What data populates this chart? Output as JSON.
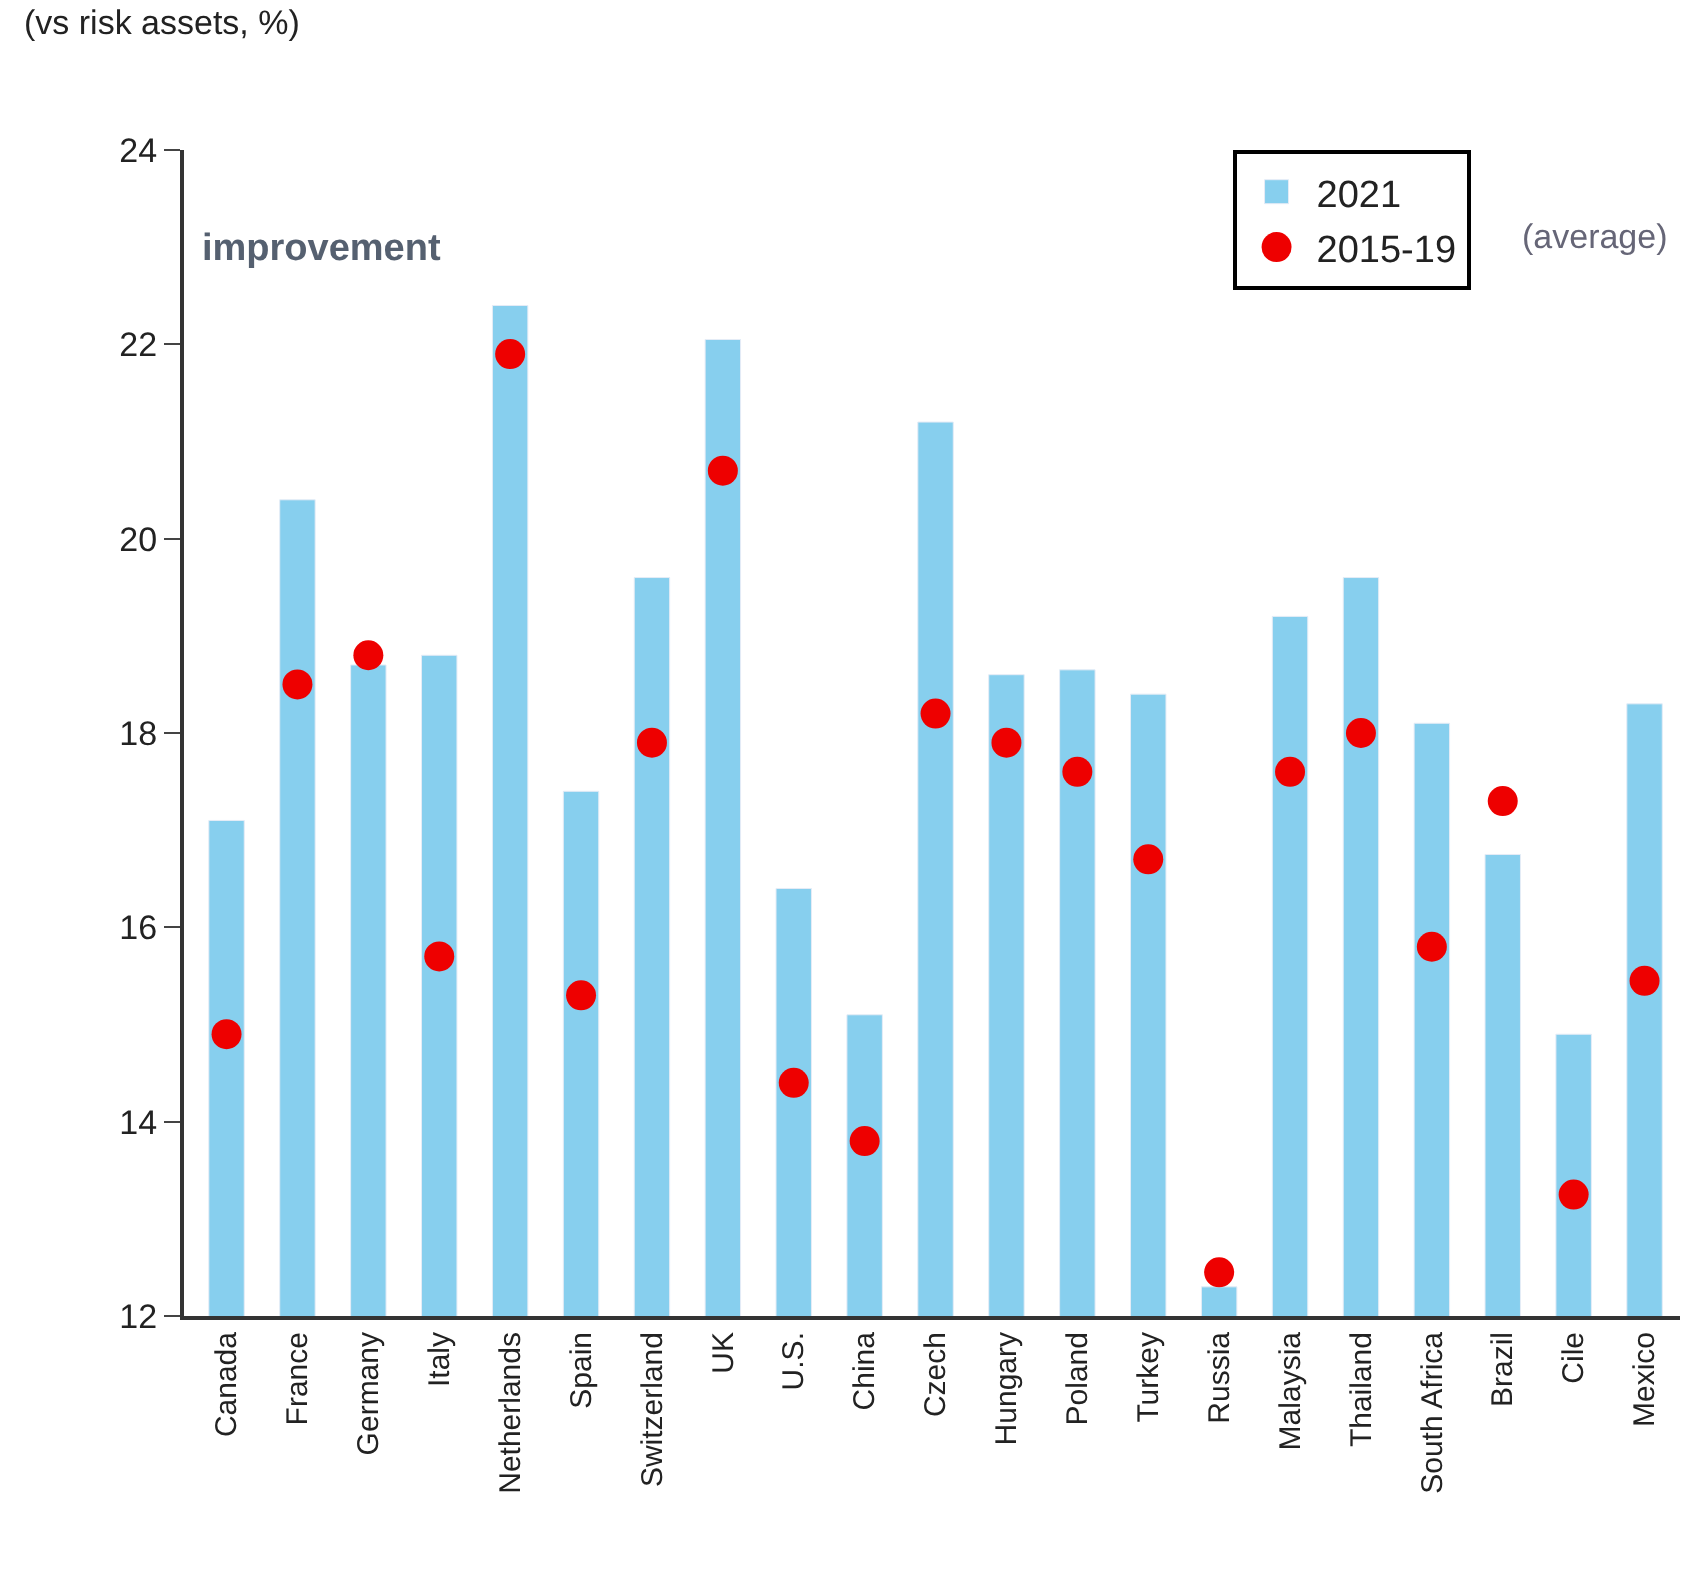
{
  "chart_data": {
    "type": "bar",
    "ylabel": "(vs risk assets, %)",
    "categories": [
      "Canada",
      "France",
      "Germany",
      "Italy",
      "Netherlands",
      "Spain",
      "Switzerland",
      "UK",
      "U.S.",
      "China",
      "Czech",
      "Hungary",
      "Poland",
      "Turkey",
      "Russia",
      "Malaysia",
      "Thailand",
      "South Africa",
      "Brazil",
      "Cile",
      "Mexico"
    ],
    "series": [
      {
        "name": "2021",
        "color": "#87cfee",
        "values": [
          17.1,
          20.4,
          18.7,
          18.8,
          22.4,
          17.4,
          19.6,
          22.05,
          16.4,
          15.1,
          21.2,
          18.6,
          18.65,
          18.4,
          12.3,
          19.2,
          19.6,
          18.1,
          16.75,
          14.9,
          18.3
        ]
      },
      {
        "name": "2015-19",
        "type": "scatter",
        "color": "#ee0000",
        "marker": "circle",
        "values": [
          14.9,
          18.5,
          18.8,
          15.7,
          21.9,
          15.3,
          17.9,
          20.7,
          14.4,
          13.8,
          18.2,
          17.9,
          17.6,
          16.7,
          12.45,
          17.6,
          18.0,
          15.8,
          17.3,
          13.25,
          15.45
        ]
      }
    ],
    "annotations": [
      "improvement",
      "(average)"
    ],
    "ylim": [
      12,
      24
    ],
    "yticks": [
      12,
      14,
      16,
      18,
      20,
      22,
      24
    ],
    "grid": false,
    "legend": "top right"
  }
}
